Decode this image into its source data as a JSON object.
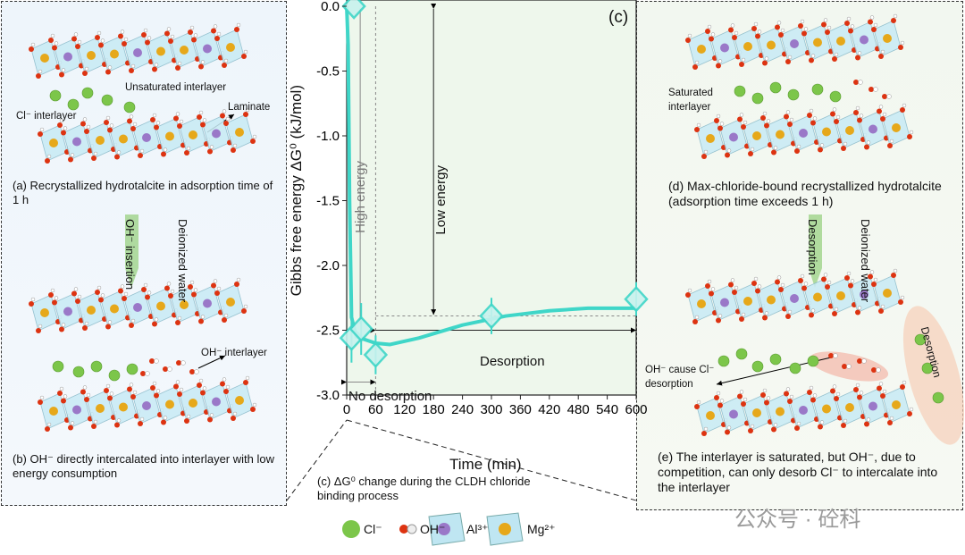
{
  "left_panel": {
    "label_unsaturated": "Unsaturated interlayer",
    "label_cl_interlayer": "Cl⁻ interlayer",
    "label_laminate": "Laminate",
    "caption_a": "(a) Recrystallized hydrotalcite in adsorption time of 1 h",
    "arrow_label": "OH⁻ insertion",
    "water_label": "Deionized water",
    "label_oh_interlayer": "OH⁻ interlayer",
    "caption_b": "(b) OH⁻ directly intercalated into interlayer with low energy consumption"
  },
  "right_panel": {
    "label_saturated": "Saturated interlayer",
    "caption_d": "(d) Max-chloride-bound recrystallized hydrotalcite (adsorption time exceeds 1 h)",
    "arrow_label": "Desorption",
    "water_label": "Deionized water",
    "label_oh_cause": "OH⁻ cause Cl⁻ desorption",
    "label_desorption": "Desorption",
    "caption_e": "(e) The interlayer is saturated, but OH⁻, due to competition, can only desorb Cl⁻ to intercalate into the interlayer"
  },
  "chart_data": {
    "type": "line",
    "panel_label": "(c)",
    "xlabel": "Time (min)",
    "ylabel": "Gibbs free energy ΔG⁰ (kJ/mol)",
    "xlim": [
      0,
      600
    ],
    "ylim": [
      -3.0,
      0.0
    ],
    "xticks": [
      "0",
      "60",
      "120",
      "180",
      "240",
      "300",
      "360",
      "420",
      "480",
      "540",
      "600"
    ],
    "yticks": [
      "0.0",
      "-0.5",
      "-1.0",
      "-1.5",
      "-2.0",
      "-2.5",
      "-3.0"
    ],
    "points": [
      {
        "x": 15,
        "y": 0.0,
        "err": 0
      },
      {
        "x": 10,
        "y": -2.56,
        "err": 0.19
      },
      {
        "x": 30,
        "y": -2.49,
        "err": 0.2
      },
      {
        "x": 60,
        "y": -2.69,
        "err": 0.15
      },
      {
        "x": 300,
        "y": -2.39,
        "err": 0.14
      },
      {
        "x": 600,
        "y": -2.26,
        "err": 0.13
      }
    ],
    "fit_curve": [
      [
        0,
        0.0
      ],
      [
        3,
        -0.3
      ],
      [
        6,
        -1.5
      ],
      [
        10,
        -2.4
      ],
      [
        20,
        -2.55
      ],
      [
        60,
        -2.6
      ],
      [
        90,
        -2.61
      ],
      [
        150,
        -2.56
      ],
      [
        240,
        -2.46
      ],
      [
        330,
        -2.39
      ],
      [
        420,
        -2.35
      ],
      [
        500,
        -2.33
      ],
      [
        600,
        -2.33
      ]
    ],
    "annotations": {
      "high_energy": "High energy",
      "low_energy": "Low energy",
      "desorption": "Desorption",
      "no_desorption": "No desorption"
    },
    "caption": "(c) ΔG⁰ change during the CLDH chloride binding process",
    "color": "#3fd6c8"
  },
  "legend": {
    "cl": "Cl⁻",
    "oh": "OH⁻",
    "al": "Al³⁺",
    "mg": "Mg²⁺"
  },
  "watermark": "公众号 · 砼科"
}
